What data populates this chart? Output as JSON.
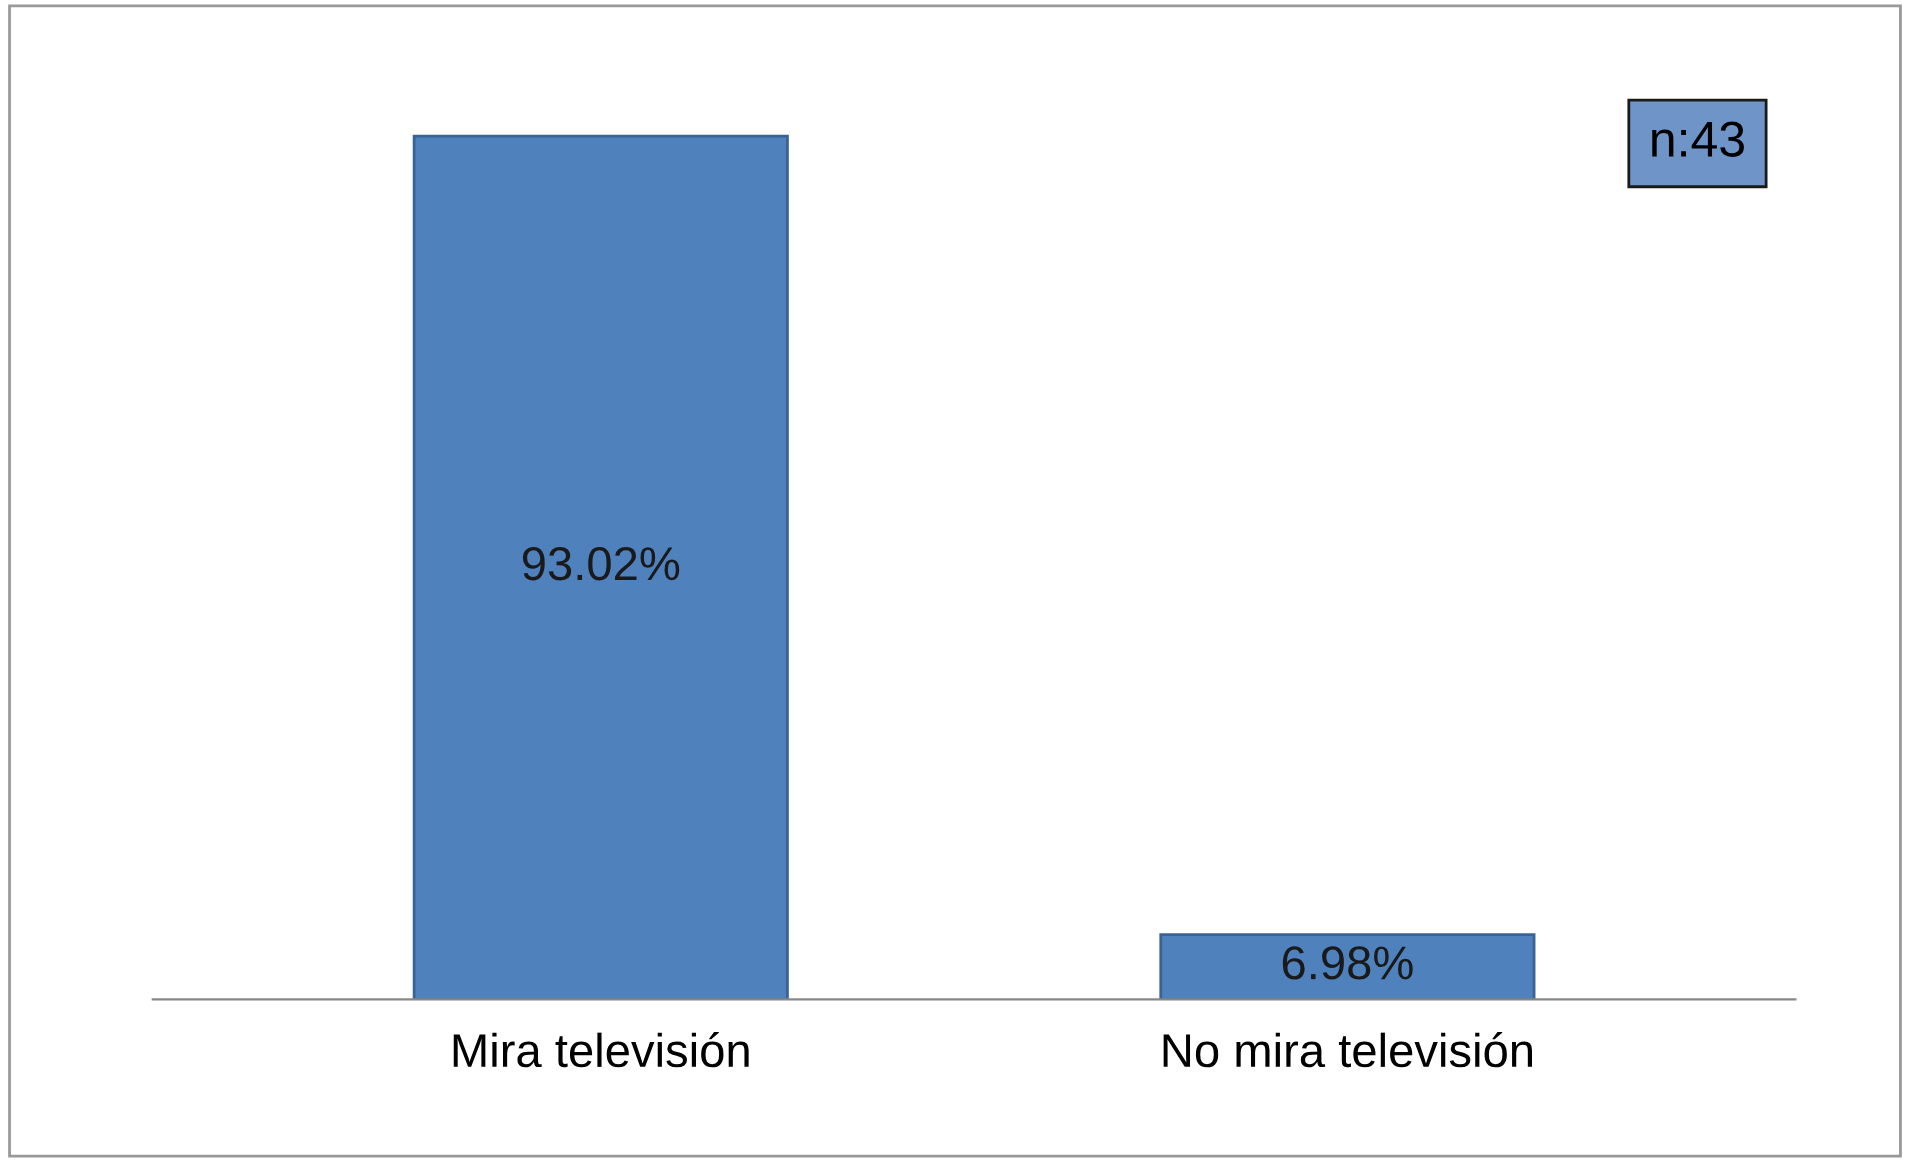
{
  "chart_data": {
    "type": "bar",
    "categories": [
      "Mira televisión",
      "No mira televisión"
    ],
    "values": [
      93.02,
      6.98
    ],
    "value_labels": [
      "93.02%",
      "6.98%"
    ],
    "color": "#4f81bd",
    "annotations": [
      "n:43"
    ]
  }
}
